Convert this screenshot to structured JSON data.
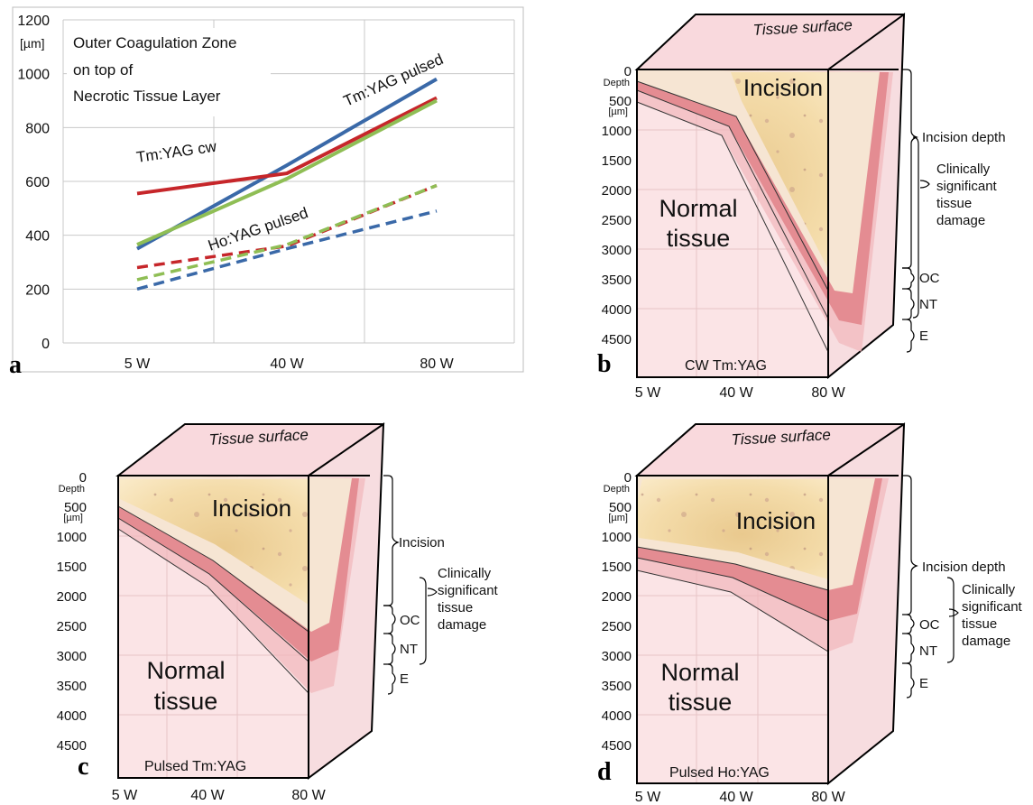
{
  "panel_a": {
    "letter": "a",
    "legend": {
      "line1": "Outer Coagulation Zone",
      "line2": "on top of",
      "line3": "Necrotic Tissue Layer"
    },
    "unit": "[µm]",
    "ytick_labels": [
      "1200",
      "1000",
      "800",
      "600",
      "400",
      "200",
      "0"
    ],
    "xtick_labels": [
      "5 W",
      "40 W",
      "80 W"
    ],
    "line_labels": {
      "tm_pulsed": "Tm:YAG pulsed",
      "tm_cw": "Tm:YAG cw",
      "ho_pulsed": "Ho:YAG pulsed"
    },
    "colors": {
      "tm_pulsed": "#3a69a8",
      "tm_cw": "#c6262a",
      "ho_pulsed": "#8fbe55"
    }
  },
  "chart_data": {
    "type": "line",
    "x": [
      "5 W",
      "40 W",
      "80 W"
    ],
    "ylim": [
      0,
      1200
    ],
    "ylabel": "[µm]",
    "series": [
      {
        "name": "Tm:YAG pulsed",
        "style": "solid",
        "values": [
          350,
          660,
          980
        ]
      },
      {
        "name": "Tm:YAG cw",
        "style": "solid",
        "values": [
          555,
          630,
          910
        ]
      },
      {
        "name": "Ho:YAG pulsed",
        "style": "solid",
        "values": [
          365,
          610,
          900
        ]
      },
      {
        "style": "dashed",
        "color": "#3a69a8",
        "values": [
          200,
          350,
          490
        ]
      },
      {
        "style": "dashed",
        "color": "#c6262a",
        "values": [
          280,
          360,
          585
        ]
      },
      {
        "style": "dashed",
        "color": "#8fbe55",
        "values": [
          235,
          365,
          585
        ]
      }
    ]
  },
  "diagram": {
    "tissue_surface": "Tissue surface",
    "depth_label": "Depth",
    "depth_unit": "[µm]",
    "depth_ticks": [
      "0",
      "500",
      "1000",
      "1500",
      "2000",
      "2500",
      "3000",
      "3500",
      "4000",
      "4500"
    ],
    "power_labels": [
      "5 W",
      "40 W",
      "80 W"
    ],
    "incision": "Incision",
    "normal_line1": "Normal",
    "normal_line2": "tissue",
    "clin_line1": "Clinically",
    "clin_line2": "significant",
    "clin_line3": "tissue",
    "clin_line4": "damage",
    "oc": "OC",
    "nt": "NT",
    "e": "E"
  },
  "panels": {
    "b": {
      "letter": "b",
      "caption": "CW Tm:YAG",
      "incision_bracket": "Incision depth"
    },
    "c": {
      "letter": "c",
      "caption": "Pulsed Tm:YAG",
      "incision_bracket": "Incision"
    },
    "d": {
      "letter": "d",
      "caption": "Pulsed Ho:YAG",
      "incision_bracket": "Incision depth"
    }
  }
}
